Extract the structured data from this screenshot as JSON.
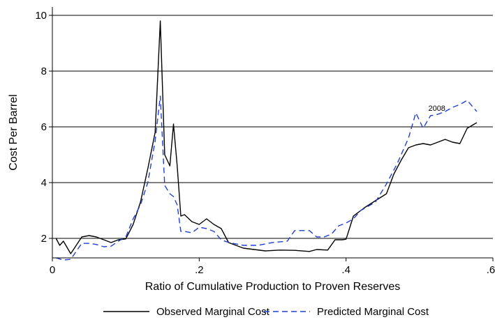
{
  "chart_data": {
    "type": "line",
    "title": "",
    "xlabel": "Ratio of Cumulative Production to Proven Reserves",
    "ylabel": "Cost Per Barrel",
    "xlim": [
      0,
      0.6
    ],
    "ylim": [
      1.3,
      10.3
    ],
    "xticks": [
      0,
      0.2,
      0.4,
      0.6
    ],
    "xtick_labels": [
      "0",
      ".2",
      ".4",
      ".6"
    ],
    "yticks": [
      2,
      4,
      6,
      8,
      10
    ],
    "ytick_labels": [
      "2",
      "4",
      "6",
      "8",
      "10"
    ],
    "grid": "horizontal",
    "legend_position": "bottom",
    "annotations": [
      {
        "text": "2008",
        "x": 0.512,
        "y": 6.58
      }
    ],
    "series": [
      {
        "name": "Observed Marginal Cost",
        "color": "#000000",
        "style": "solid",
        "x": [
          0.005,
          0.01,
          0.015,
          0.025,
          0.04,
          0.05,
          0.06,
          0.07,
          0.08,
          0.09,
          0.1,
          0.11,
          0.12,
          0.13,
          0.14,
          0.147,
          0.153,
          0.16,
          0.165,
          0.17,
          0.175,
          0.18,
          0.19,
          0.2,
          0.21,
          0.22,
          0.23,
          0.24,
          0.26,
          0.29,
          0.31,
          0.33,
          0.35,
          0.36,
          0.375,
          0.385,
          0.395,
          0.4,
          0.41,
          0.425,
          0.44,
          0.455,
          0.465,
          0.475,
          0.485,
          0.495,
          0.505,
          0.515,
          0.525,
          0.535,
          0.545,
          0.555,
          0.565,
          0.578
        ],
        "values": [
          2.0,
          1.75,
          1.9,
          1.45,
          2.05,
          2.1,
          2.05,
          1.95,
          1.85,
          1.95,
          1.98,
          2.5,
          3.3,
          4.5,
          5.8,
          9.8,
          5.0,
          4.6,
          6.1,
          4.6,
          2.8,
          2.85,
          2.6,
          2.5,
          2.7,
          2.5,
          2.35,
          1.85,
          1.65,
          1.55,
          1.58,
          1.57,
          1.53,
          1.6,
          1.58,
          1.95,
          1.95,
          1.97,
          2.8,
          3.1,
          3.35,
          3.6,
          4.3,
          4.8,
          5.25,
          5.35,
          5.4,
          5.35,
          5.45,
          5.55,
          5.45,
          5.4,
          5.95,
          6.15
        ]
      },
      {
        "name": "Predicted Marginal Cost",
        "color": "#1f3fd6",
        "style": "dashed",
        "x": [
          0.005,
          0.015,
          0.025,
          0.04,
          0.05,
          0.06,
          0.07,
          0.08,
          0.09,
          0.1,
          0.11,
          0.12,
          0.13,
          0.14,
          0.147,
          0.153,
          0.16,
          0.165,
          0.17,
          0.175,
          0.18,
          0.19,
          0.2,
          0.21,
          0.22,
          0.23,
          0.24,
          0.26,
          0.28,
          0.3,
          0.32,
          0.33,
          0.35,
          0.36,
          0.37,
          0.38,
          0.39,
          0.4,
          0.41,
          0.42,
          0.44,
          0.455,
          0.47,
          0.485,
          0.495,
          0.505,
          0.515,
          0.525,
          0.535,
          0.545,
          0.555,
          0.565,
          0.578
        ],
        "values": [
          1.3,
          1.22,
          1.25,
          1.82,
          1.82,
          1.78,
          1.7,
          1.72,
          1.9,
          2.05,
          2.7,
          3.2,
          4.0,
          5.5,
          7.1,
          3.9,
          3.6,
          3.5,
          3.2,
          2.25,
          2.25,
          2.2,
          2.4,
          2.35,
          2.25,
          1.95,
          1.85,
          1.75,
          1.75,
          1.85,
          1.9,
          2.28,
          2.28,
          2.05,
          2.05,
          2.15,
          2.45,
          2.55,
          2.7,
          3.0,
          3.3,
          3.95,
          4.7,
          5.6,
          6.5,
          5.95,
          6.4,
          6.45,
          6.55,
          6.7,
          6.8,
          6.95,
          6.55
        ]
      }
    ]
  }
}
